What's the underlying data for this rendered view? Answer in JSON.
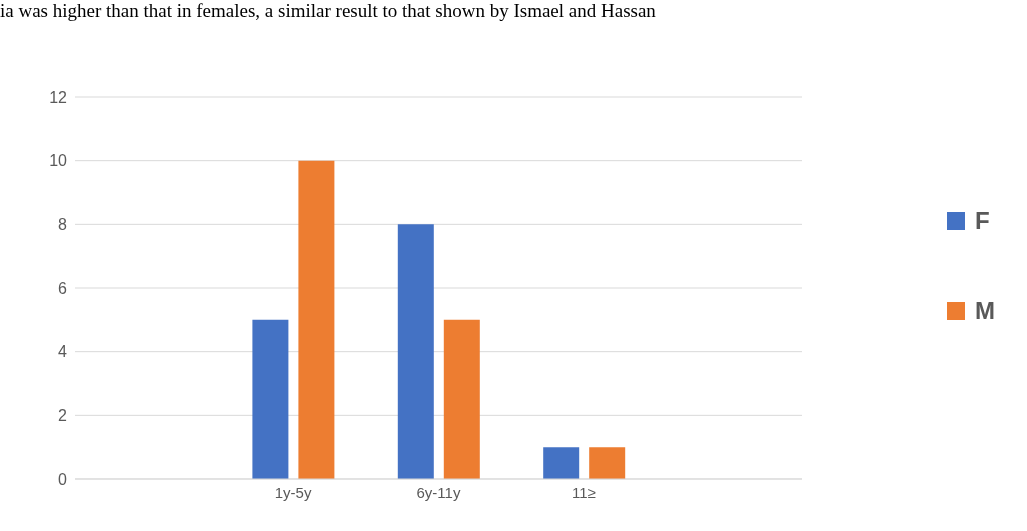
{
  "chart_data": {
    "type": "bar",
    "annotations": [
      "ia was higher than that in females, a similar result to that shown by Ismael and Hassan"
    ],
    "categories": [
      null,
      "1y-5y",
      "6y-11y",
      "11≥",
      null
    ],
    "series": [
      {
        "name": "F",
        "color": "#4472c4",
        "values": [
          null,
          5,
          8,
          1,
          null
        ]
      },
      {
        "name": "M",
        "color": "#ed7d31",
        "values": [
          null,
          10,
          5,
          1,
          null
        ]
      }
    ],
    "ylim": [
      0,
      12
    ],
    "yticks": [
      0,
      2,
      4,
      6,
      8,
      10,
      12
    ],
    "grid": "y",
    "legend": "right"
  }
}
